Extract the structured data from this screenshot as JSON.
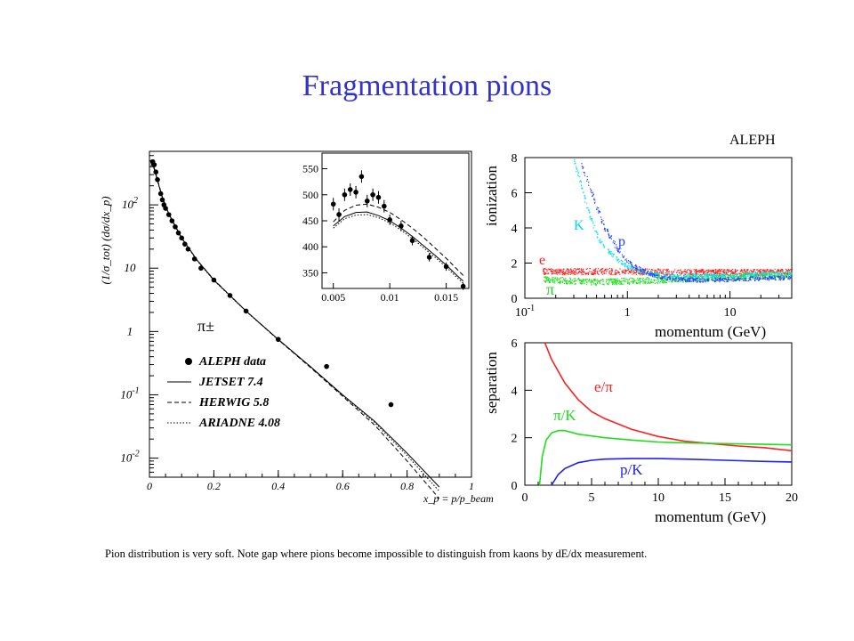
{
  "slide": {
    "title": "Fragmentation pions",
    "caption": "Pion distribution is very soft. Note gap where pions become impossible to distinguish from kaons by dE/dx measurement."
  },
  "chart_data": [
    {
      "type": "line",
      "title": "",
      "particle_label": "π±",
      "xlabel": "x_p = p/p_beam",
      "ylabel": "(1/σ_tot) (dσ/dx_p)",
      "xlim": [
        0,
        1
      ],
      "ylim": [
        0.005,
        700
      ],
      "yscale": "log",
      "x_ticks": [
        "0",
        "0.2",
        "0.4",
        "0.6",
        "0.8",
        "1"
      ],
      "y_ticks": [
        "10^-2",
        "10^-1",
        "1",
        "10",
        "10^2"
      ],
      "legend": [
        "ALEPH data",
        "JETSET 7.4",
        "HERWIG 5.8",
        "ARIADNE 4.08"
      ],
      "legend_position": "bottom-left",
      "series": [
        {
          "name": "ALEPH data",
          "style": "points",
          "x": [
            0.01,
            0.015,
            0.02,
            0.025,
            0.035,
            0.04,
            0.045,
            0.05,
            0.06,
            0.07,
            0.08,
            0.09,
            0.1,
            0.11,
            0.12,
            0.14,
            0.16,
            0.2,
            0.25,
            0.3,
            0.4,
            0.55,
            0.75
          ],
          "y": [
            480,
            430,
            330,
            250,
            150,
            120,
            100,
            88,
            70,
            56,
            45,
            36,
            30,
            24,
            20,
            14,
            10,
            6.5,
            3.7,
            2.1,
            0.75,
            0.28,
            0.07
          ]
        },
        {
          "name": "JETSET 7.4",
          "style": "solid",
          "x": [
            0.005,
            0.01,
            0.02,
            0.04,
            0.06,
            0.1,
            0.15,
            0.2,
            0.3,
            0.4,
            0.5,
            0.6,
            0.7,
            0.8,
            0.9
          ],
          "y": [
            420,
            450,
            300,
            130,
            72,
            30,
            13,
            6.5,
            2.1,
            0.75,
            0.28,
            0.1,
            0.038,
            0.012,
            0.0035
          ]
        },
        {
          "name": "HERWIG 5.8",
          "style": "dashed",
          "x": [
            0.005,
            0.01,
            0.02,
            0.04,
            0.06,
            0.1,
            0.15,
            0.2,
            0.3,
            0.4,
            0.5,
            0.6,
            0.7,
            0.8,
            0.9
          ],
          "y": [
            440,
            470,
            310,
            132,
            73,
            30,
            13,
            6.6,
            2.1,
            0.74,
            0.27,
            0.095,
            0.033,
            0.009,
            0.0023
          ]
        },
        {
          "name": "ARIADNE 4.08",
          "style": "dotted",
          "x": [
            0.005,
            0.01,
            0.02,
            0.04,
            0.06,
            0.1,
            0.15,
            0.2,
            0.3,
            0.4,
            0.5,
            0.6,
            0.7,
            0.8,
            0.9
          ],
          "y": [
            410,
            440,
            295,
            128,
            71,
            29.5,
            12.8,
            6.4,
            2.08,
            0.74,
            0.275,
            0.098,
            0.036,
            0.011,
            0.003
          ]
        }
      ]
    },
    {
      "type": "line",
      "title": "",
      "xlim": [
        0.004,
        0.017
      ],
      "ylim": [
        320,
        580
      ],
      "x_ticks": [
        "0.005",
        "0.01",
        "0.015"
      ],
      "y_ticks": [
        "350",
        "400",
        "450",
        "500",
        "550"
      ],
      "series": [
        {
          "name": "ALEPH data",
          "style": "points",
          "x": [
            0.005,
            0.0055,
            0.006,
            0.0065,
            0.007,
            0.0075,
            0.008,
            0.0085,
            0.009,
            0.0095,
            0.01,
            0.011,
            0.012,
            0.0135,
            0.015,
            0.0165
          ],
          "y": [
            482,
            462,
            500,
            510,
            505,
            535,
            488,
            500,
            495,
            478,
            452,
            440,
            412,
            380,
            362,
            324
          ],
          "err": [
            12,
            12,
            12,
            12,
            12,
            12,
            12,
            12,
            12,
            12,
            10,
            10,
            9,
            8,
            8,
            7
          ]
        },
        {
          "name": "JETSET 7.4",
          "style": "solid",
          "x": [
            0.005,
            0.006,
            0.007,
            0.008,
            0.009,
            0.01,
            0.011,
            0.012,
            0.013,
            0.014,
            0.015,
            0.016,
            0.0165
          ],
          "y": [
            440,
            458,
            466,
            467,
            460,
            450,
            436,
            420,
            402,
            384,
            365,
            344,
            334
          ]
        },
        {
          "name": "HERWIG 5.8",
          "style": "dashed",
          "x": [
            0.005,
            0.006,
            0.007,
            0.008,
            0.009,
            0.01,
            0.011,
            0.012,
            0.013,
            0.014,
            0.015,
            0.016,
            0.0165
          ],
          "y": [
            448,
            470,
            480,
            482,
            476,
            466,
            452,
            436,
            418,
            398,
            378,
            356,
            345
          ]
        },
        {
          "name": "ARIADNE 4.08",
          "style": "dotted",
          "x": [
            0.005,
            0.006,
            0.007,
            0.008,
            0.009,
            0.01,
            0.011,
            0.012,
            0.013,
            0.014,
            0.015,
            0.016,
            0.0165
          ],
          "y": [
            436,
            454,
            461,
            462,
            456,
            446,
            432,
            416,
            398,
            380,
            361,
            340,
            330
          ]
        }
      ]
    },
    {
      "type": "scatter",
      "title": "ALEPH",
      "xlabel": "momentum (GeV)",
      "ylabel": "ionization",
      "xscale": "log",
      "xlim": [
        0.1,
        40
      ],
      "ylim": [
        0,
        8
      ],
      "x_ticks": [
        "10^-1",
        "1",
        "10"
      ],
      "y_ticks": [
        "0",
        "2",
        "4",
        "6",
        "8"
      ],
      "series": [
        {
          "name": "K",
          "color": "#00e0f0",
          "x": [
            0.3,
            0.35,
            0.4,
            0.5,
            0.6,
            0.8,
            1,
            1.5,
            2,
            3,
            5,
            10,
            20,
            40
          ],
          "y": [
            7.8,
            6.5,
            5.2,
            3.6,
            2.9,
            2.2,
            1.8,
            1.45,
            1.35,
            1.3,
            1.3,
            1.35,
            1.4,
            1.45
          ]
        },
        {
          "name": "p",
          "color": "#2040ff",
          "x": [
            0.35,
            0.4,
            0.5,
            0.6,
            0.8,
            1,
            1.2,
            1.5,
            2,
            3,
            5,
            10,
            20,
            40
          ],
          "y": [
            7.8,
            6.8,
            5.2,
            4.0,
            2.8,
            2.1,
            1.8,
            1.5,
            1.25,
            1.1,
            1.05,
            1.1,
            1.15,
            1.2
          ]
        },
        {
          "name": "e",
          "color": "#ff2020",
          "x": [
            0.15,
            0.3,
            1,
            3,
            10,
            40
          ],
          "y": [
            1.55,
            1.55,
            1.55,
            1.5,
            1.5,
            1.5
          ]
        },
        {
          "name": "π",
          "color": "#20e020",
          "x": [
            0.15,
            0.3,
            0.5,
            1,
            3,
            10,
            40
          ],
          "y": [
            1.1,
            1.0,
            0.95,
            1.0,
            1.1,
            1.25,
            1.35
          ]
        }
      ]
    },
    {
      "type": "line",
      "title": "",
      "xlabel": "momentum (GeV)",
      "ylabel": "separation",
      "xlim": [
        0,
        20
      ],
      "ylim": [
        0,
        6
      ],
      "x_ticks": [
        "0",
        "5",
        "10",
        "15",
        "20"
      ],
      "y_ticks": [
        "0",
        "2",
        "4",
        "6"
      ],
      "series": [
        {
          "name": "e/π",
          "color": "#ff2020",
          "x": [
            1.5,
            2,
            3,
            4,
            5,
            6,
            8,
            10,
            12,
            14,
            16,
            18,
            20
          ],
          "y": [
            6.0,
            5.3,
            4.3,
            3.6,
            3.1,
            2.8,
            2.35,
            2.05,
            1.85,
            1.75,
            1.65,
            1.58,
            1.45
          ]
        },
        {
          "name": "π/K",
          "color": "#20dd20",
          "x": [
            1.1,
            1.3,
            1.6,
            2,
            2.5,
            3,
            4,
            6,
            8,
            10,
            12,
            15,
            18,
            20
          ],
          "y": [
            0,
            1.2,
            1.9,
            2.2,
            2.3,
            2.3,
            2.15,
            2.0,
            1.9,
            1.82,
            1.78,
            1.75,
            1.72,
            1.7
          ]
        },
        {
          "name": "p/K",
          "color": "#2020ee",
          "x": [
            2,
            2.5,
            3,
            4,
            5,
            6,
            8,
            10,
            12,
            15,
            18,
            20
          ],
          "y": [
            0,
            0.45,
            0.7,
            0.95,
            1.05,
            1.1,
            1.12,
            1.12,
            1.1,
            1.05,
            1.0,
            0.98
          ]
        }
      ]
    }
  ]
}
